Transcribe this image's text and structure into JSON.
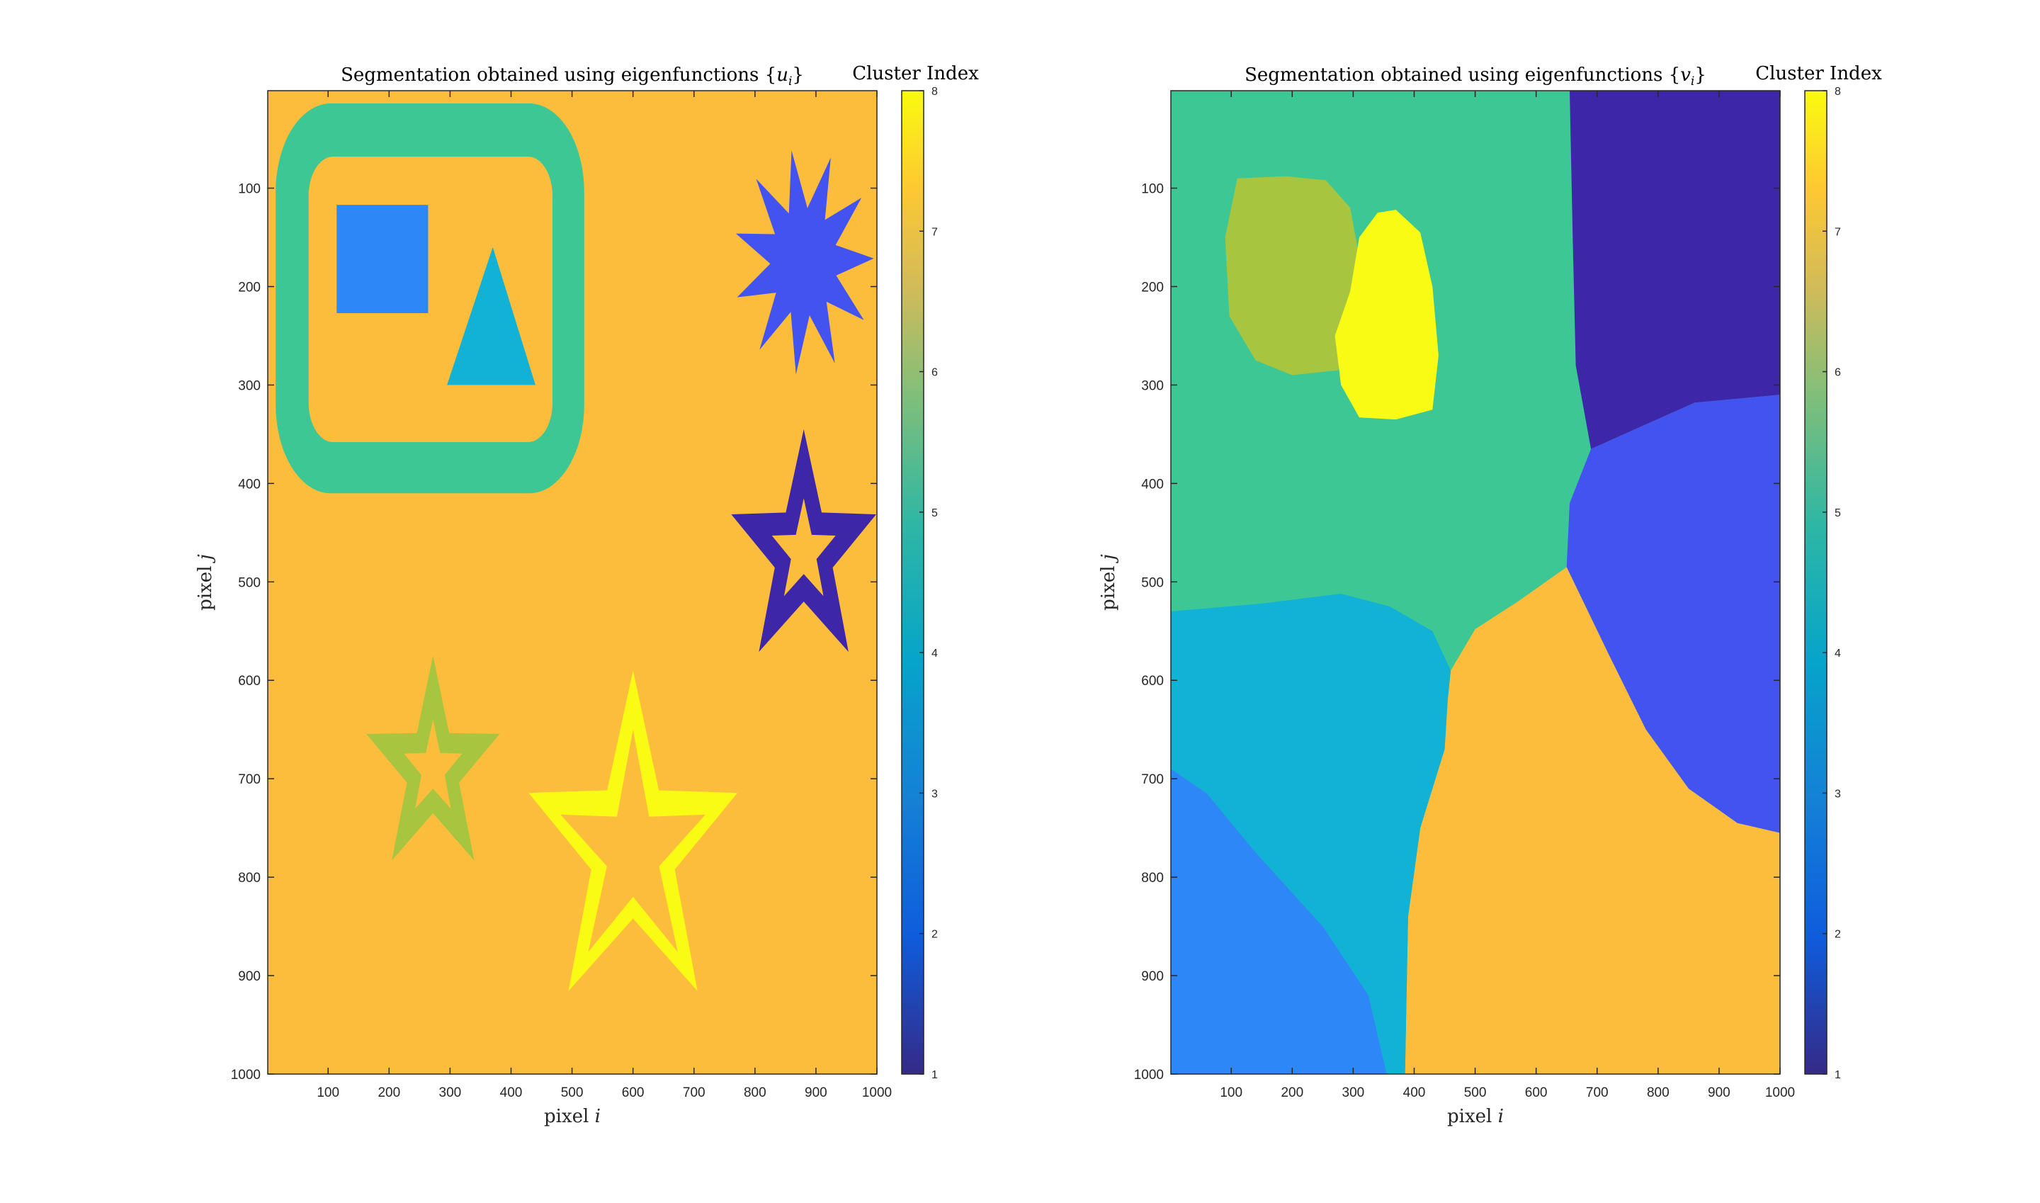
{
  "chart_data": [
    {
      "type": "heatmap",
      "title_prefix": "Segmentation obtained using eigenfunctions {",
      "title_var": "u",
      "title_sub": "i",
      "title_suffix": "}",
      "xlabel_text": "pixel ",
      "xlabel_var": "i",
      "ylabel_text": "pixel ",
      "ylabel_var": "j",
      "colorbar_label": "Cluster Index",
      "xlim": [
        1,
        1000
      ],
      "ylim": [
        1,
        1000
      ],
      "y_reversed": true,
      "x_ticks": [
        "100",
        "200",
        "300",
        "400",
        "500",
        "600",
        "700",
        "800",
        "900",
        "1000"
      ],
      "y_ticks": [
        "100",
        "200",
        "300",
        "400",
        "500",
        "600",
        "700",
        "800",
        "900",
        "1000"
      ],
      "colorbar_ticks": [
        "1",
        "2",
        "3",
        "4",
        "5",
        "6",
        "7",
        "8"
      ],
      "background_cluster": 7,
      "regions": [
        {
          "name": "rounded-frame-outer",
          "cluster": 5,
          "shape": "roundrect",
          "x": [
            14,
            520
          ],
          "y": [
            14,
            410
          ],
          "r": 90
        },
        {
          "name": "rounded-frame-inner",
          "cluster": 7,
          "shape": "roundrect",
          "x": [
            68,
            468
          ],
          "y": [
            68,
            358
          ],
          "r": 40
        },
        {
          "name": "square",
          "cluster": 3,
          "shape": "rect",
          "x": [
            114,
            264
          ],
          "y": [
            117,
            227
          ]
        },
        {
          "name": "triangle",
          "cluster": 4,
          "shape": "polygon",
          "points": [
            [
              370,
              160
            ],
            [
              295,
              300
            ],
            [
              440,
              300
            ]
          ]
        },
        {
          "name": "burst",
          "cluster": 2,
          "shape": "star",
          "cx": 880,
          "cy": 175,
          "r_outer": 115,
          "r_inner": 55,
          "n": 11,
          "rot": -10
        },
        {
          "name": "right-star-outer",
          "cluster": 1,
          "shape": "star",
          "cx": 880,
          "cy": 470,
          "r_outer": 125,
          "r_inner": 50,
          "n": 5,
          "rot": 0
        },
        {
          "name": "right-star-inner",
          "cluster": 7,
          "shape": "star",
          "cx": 880,
          "cy": 470,
          "r_outer": 55,
          "r_inner": 22,
          "n": 5,
          "rot": 0
        },
        {
          "name": "small-star-outer",
          "cluster": 6,
          "shape": "star",
          "cx": 272,
          "cy": 690,
          "r_outer": 115,
          "r_inner": 45,
          "n": 5,
          "rot": 0
        },
        {
          "name": "small-star-inner",
          "cluster": 7,
          "shape": "star",
          "cx": 272,
          "cy": 690,
          "r_outer": 50,
          "r_inner": 20,
          "n": 5,
          "rot": 0
        },
        {
          "name": "big-star-outer",
          "cluster": 8,
          "shape": "star",
          "cx": 600,
          "cy": 770,
          "r_outer": 180,
          "r_inner": 72,
          "n": 5,
          "rot": 0
        },
        {
          "name": "big-star-inner",
          "cluster": 7,
          "shape": "star",
          "cx": 600,
          "cy": 775,
          "r_outer": 125,
          "r_inner": 45,
          "n": 5,
          "rot": 0
        }
      ]
    },
    {
      "type": "heatmap",
      "title_prefix": "Segmentation obtained using eigenfunctions {",
      "title_var": "v",
      "title_sub": "i",
      "title_suffix": "}",
      "xlabel_text": "pixel ",
      "xlabel_var": "i",
      "ylabel_text": "pixel ",
      "ylabel_var": "j",
      "colorbar_label": "Cluster Index",
      "xlim": [
        1,
        1000
      ],
      "ylim": [
        1,
        1000
      ],
      "y_reversed": true,
      "x_ticks": [
        "100",
        "200",
        "300",
        "400",
        "500",
        "600",
        "700",
        "800",
        "900",
        "1000"
      ],
      "y_ticks": [
        "100",
        "200",
        "300",
        "400",
        "500",
        "600",
        "700",
        "800",
        "900",
        "1000"
      ],
      "colorbar_ticks": [
        "1",
        "2",
        "3",
        "4",
        "5",
        "6",
        "7",
        "8"
      ],
      "background_cluster": 5,
      "regions": [
        {
          "name": "upper-right-region",
          "cluster": 1,
          "shape": "polygon",
          "points": [
            [
              655,
              1
            ],
            [
              1000,
              1
            ],
            [
              1000,
              310
            ],
            [
              860,
              318
            ],
            [
              690,
              365
            ],
            [
              665,
              280
            ],
            [
              660,
              150
            ]
          ]
        },
        {
          "name": "right-middle-region",
          "cluster": 2,
          "shape": "polygon",
          "points": [
            [
              690,
              365
            ],
            [
              860,
              318
            ],
            [
              1000,
              310
            ],
            [
              1000,
              755
            ],
            [
              930,
              745
            ],
            [
              850,
              710
            ],
            [
              780,
              650
            ],
            [
              720,
              575
            ],
            [
              650,
              485
            ],
            [
              655,
              420
            ]
          ]
        },
        {
          "name": "lower-middle-region",
          "cluster": 7,
          "shape": "polygon",
          "points": [
            [
              460,
              590
            ],
            [
              500,
              548
            ],
            [
              570,
              520
            ],
            [
              650,
              485
            ],
            [
              720,
              575
            ],
            [
              780,
              650
            ],
            [
              850,
              710
            ],
            [
              930,
              745
            ],
            [
              1000,
              755
            ],
            [
              1000,
              1000
            ],
            [
              385,
              1000
            ],
            [
              390,
              840
            ],
            [
              410,
              750
            ],
            [
              450,
              670
            ],
            [
              455,
              620
            ]
          ]
        },
        {
          "name": "left-middle-region",
          "cluster": 4,
          "shape": "polygon",
          "points": [
            [
              1,
              530
            ],
            [
              150,
              522
            ],
            [
              280,
              512
            ],
            [
              360,
              525
            ],
            [
              430,
              550
            ],
            [
              460,
              590
            ],
            [
              455,
              620
            ],
            [
              450,
              670
            ],
            [
              410,
              750
            ],
            [
              390,
              840
            ],
            [
              385,
              1000
            ],
            [
              355,
              1000
            ],
            [
              325,
              920
            ],
            [
              250,
              850
            ],
            [
              140,
              775
            ],
            [
              60,
              715
            ],
            [
              1,
              690
            ]
          ]
        },
        {
          "name": "bottom-left-region",
          "cluster": 3,
          "shape": "polygon",
          "points": [
            [
              1,
              690
            ],
            [
              60,
              715
            ],
            [
              140,
              775
            ],
            [
              250,
              850
            ],
            [
              325,
              920
            ],
            [
              355,
              1000
            ],
            [
              1,
              1000
            ]
          ]
        },
        {
          "name": "left-blob",
          "cluster": 6,
          "shape": "polygon",
          "points": [
            [
              110,
              90
            ],
            [
              190,
              88
            ],
            [
              255,
              92
            ],
            [
              295,
              120
            ],
            [
              310,
              170
            ],
            [
              300,
              230
            ],
            [
              275,
              285
            ],
            [
              200,
              290
            ],
            [
              140,
              275
            ],
            [
              97,
              230
            ],
            [
              90,
              150
            ]
          ]
        },
        {
          "name": "right-blob",
          "cluster": 8,
          "shape": "polygon",
          "points": [
            [
              370,
              122
            ],
            [
              410,
              145
            ],
            [
              430,
              200
            ],
            [
              440,
              270
            ],
            [
              430,
              325
            ],
            [
              370,
              335
            ],
            [
              310,
              333
            ],
            [
              280,
              300
            ],
            [
              270,
              250
            ],
            [
              295,
              205
            ],
            [
              310,
              150
            ],
            [
              340,
              125
            ]
          ]
        }
      ]
    }
  ],
  "colormap": [
    "#3e26a8",
    "#4353f0",
    "#2e87f7",
    "#12b1d6",
    "#3dc794",
    "#a8c540",
    "#fdbd3c",
    "#f9fb15"
  ]
}
